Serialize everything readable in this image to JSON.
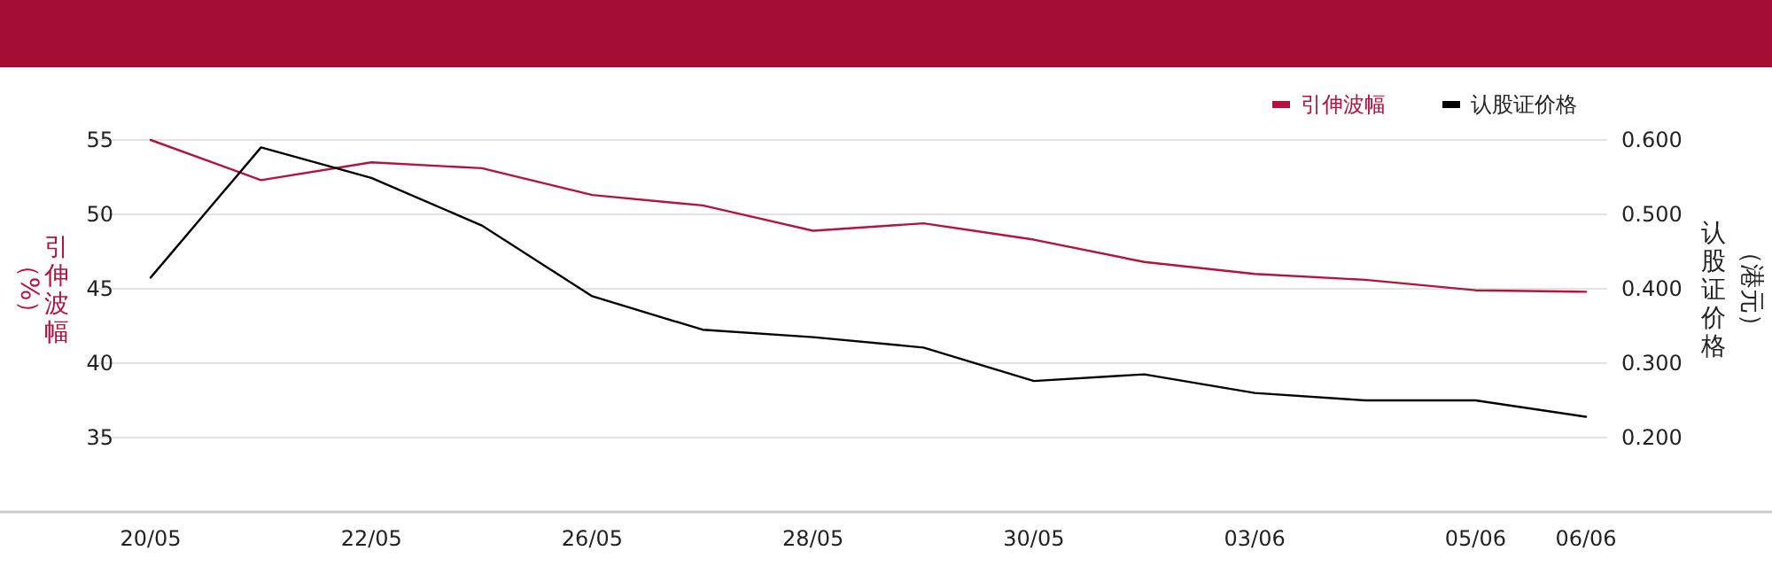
{
  "chart_data": {
    "type": "line",
    "categories": [
      "20/05",
      null,
      "22/05",
      null,
      "26/05",
      null,
      "28/05",
      null,
      "30/05",
      null,
      "03/06",
      null,
      "05/06",
      "06/06"
    ],
    "series": [
      {
        "name": "引伸波幅",
        "color": "#b5123e",
        "values": [
          55.0,
          52.3,
          53.5,
          53.1,
          51.3,
          50.6,
          48.9,
          49.4,
          48.3,
          46.8,
          46.0,
          45.6,
          44.9,
          44.8
        ]
      },
      {
        "name": "认股证价格",
        "color": "#000000",
        "axis": "y2",
        "values": [
          0.415,
          0.59,
          0.549,
          0.485,
          0.39,
          0.345,
          0.335,
          0.321,
          0.276,
          0.285,
          0.26,
          0.25,
          0.25,
          0.228
        ]
      }
    ],
    "ylabel": "引伸波幅（%）",
    "y2label": "认股证价格（港元）",
    "ylim": [
      30,
      55
    ],
    "yticks": [
      {
        "value": 30,
        "label": null
      },
      35,
      40,
      45,
      50,
      55
    ],
    "y2lim": [
      0.1,
      0.6
    ],
    "y2ticks": [
      {
        "value": 0.2,
        "label": "0.200"
      },
      {
        "value": 0.3,
        "label": "0.300"
      },
      {
        "value": 0.4,
        "label": "0.400"
      },
      {
        "value": 0.5,
        "label": "0.500"
      },
      {
        "value": 0.6,
        "label": "0.600"
      }
    ],
    "grid": "y",
    "legend": "top right",
    "marker": "none",
    "line_style": "solid"
  }
}
